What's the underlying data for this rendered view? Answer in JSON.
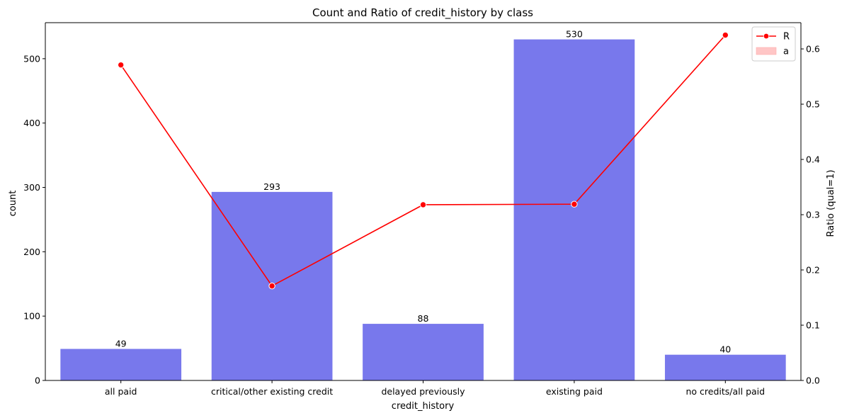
{
  "chart_data": {
    "type": "bar",
    "title": "Count and Ratio of credit_history by class",
    "xlabel": "credit_history",
    "ylabel": "count",
    "y2label": "Ratio (qual=1)",
    "categories": [
      "all paid",
      "critical/other existing credit",
      "delayed previously",
      "existing paid",
      "no credits/all paid"
    ],
    "series": [
      {
        "kind": "bar",
        "axis": "left",
        "color": "#7878ec",
        "values": [
          49,
          293,
          88,
          530,
          40
        ]
      },
      {
        "kind": "line",
        "axis": "right",
        "color": "#ff0000",
        "values": [
          0.571,
          0.171,
          0.318,
          0.319,
          0.625
        ]
      }
    ],
    "ylim": [
      0,
      556
    ],
    "y2lim": [
      0,
      0.6475
    ],
    "yticks": [
      0,
      100,
      200,
      300,
      400,
      500
    ],
    "y2ticks": [
      0.0,
      0.1,
      0.2,
      0.3,
      0.4,
      0.5,
      0.6
    ],
    "legend": {
      "placement": "top-right",
      "entries": [
        {
          "label": "R",
          "kind": "line-marker",
          "color": "#ff0000"
        },
        {
          "label": "a",
          "kind": "patch",
          "color": "#ffc6c6"
        }
      ]
    },
    "grid": false
  }
}
